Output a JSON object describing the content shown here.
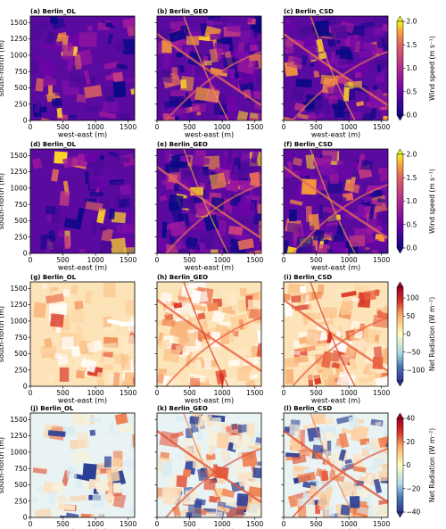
{
  "chart_data": {
    "type": "heatmap",
    "layout": {
      "rows": 4,
      "cols": 3
    },
    "xlabel": "west-east (m)",
    "ylabel": "south-north (m)",
    "xticks": [
      0,
      500,
      1000,
      1500
    ],
    "yticks": [
      0,
      250,
      500,
      750,
      1000,
      1250,
      1500
    ],
    "xlim": [
      0,
      1600
    ],
    "ylim": [
      0,
      1600
    ],
    "rows": [
      {
        "colormap": "plasma",
        "colorbar_label": "Wind speed (m s⁻¹)",
        "colorbar_ticks": [
          "0.0",
          "0.5",
          "1.0",
          "1.5",
          "2.0"
        ],
        "value_range": [
          0.0,
          2.0
        ],
        "panels": [
          {
            "title": "(a) Berlin_OL"
          },
          {
            "title": "(b) Berlin_GEO"
          },
          {
            "title": "(c) Berlin_CSD"
          }
        ]
      },
      {
        "colormap": "plasma",
        "colorbar_label": "Wind speed (m s⁻¹)",
        "colorbar_ticks": [
          "0.0",
          "0.5",
          "1.0",
          "1.5",
          "2.0"
        ],
        "value_range": [
          0.0,
          2.0
        ],
        "panels": [
          {
            "title": "(d) Berlin_OL"
          },
          {
            "title": "(e) Berlin_GEO"
          },
          {
            "title": "(f) Berlin_CSD"
          }
        ]
      },
      {
        "colormap": "RdYlBu_r",
        "colorbar_label": "Net Radiation (W m⁻²)",
        "colorbar_ticks": [
          "−100",
          "−50",
          "0",
          "50",
          "100"
        ],
        "value_range": [
          -130,
          130
        ],
        "panels": [
          {
            "title": "(g) Berlin_OL"
          },
          {
            "title": "(h) Berlin_GEO"
          },
          {
            "title": "(i) Berlin_CSD"
          }
        ]
      },
      {
        "colormap": "RdYlBu_r",
        "colorbar_label": "Net Radiation (W m⁻²)",
        "colorbar_ticks": [
          "−40",
          "−20",
          "0",
          "20",
          "40"
        ],
        "value_range": [
          -40,
          40
        ],
        "panels": [
          {
            "title": "(j) Berlin_OL"
          },
          {
            "title": "(k) Berlin_GEO"
          },
          {
            "title": "(l) Berlin_CSD"
          }
        ]
      }
    ]
  }
}
